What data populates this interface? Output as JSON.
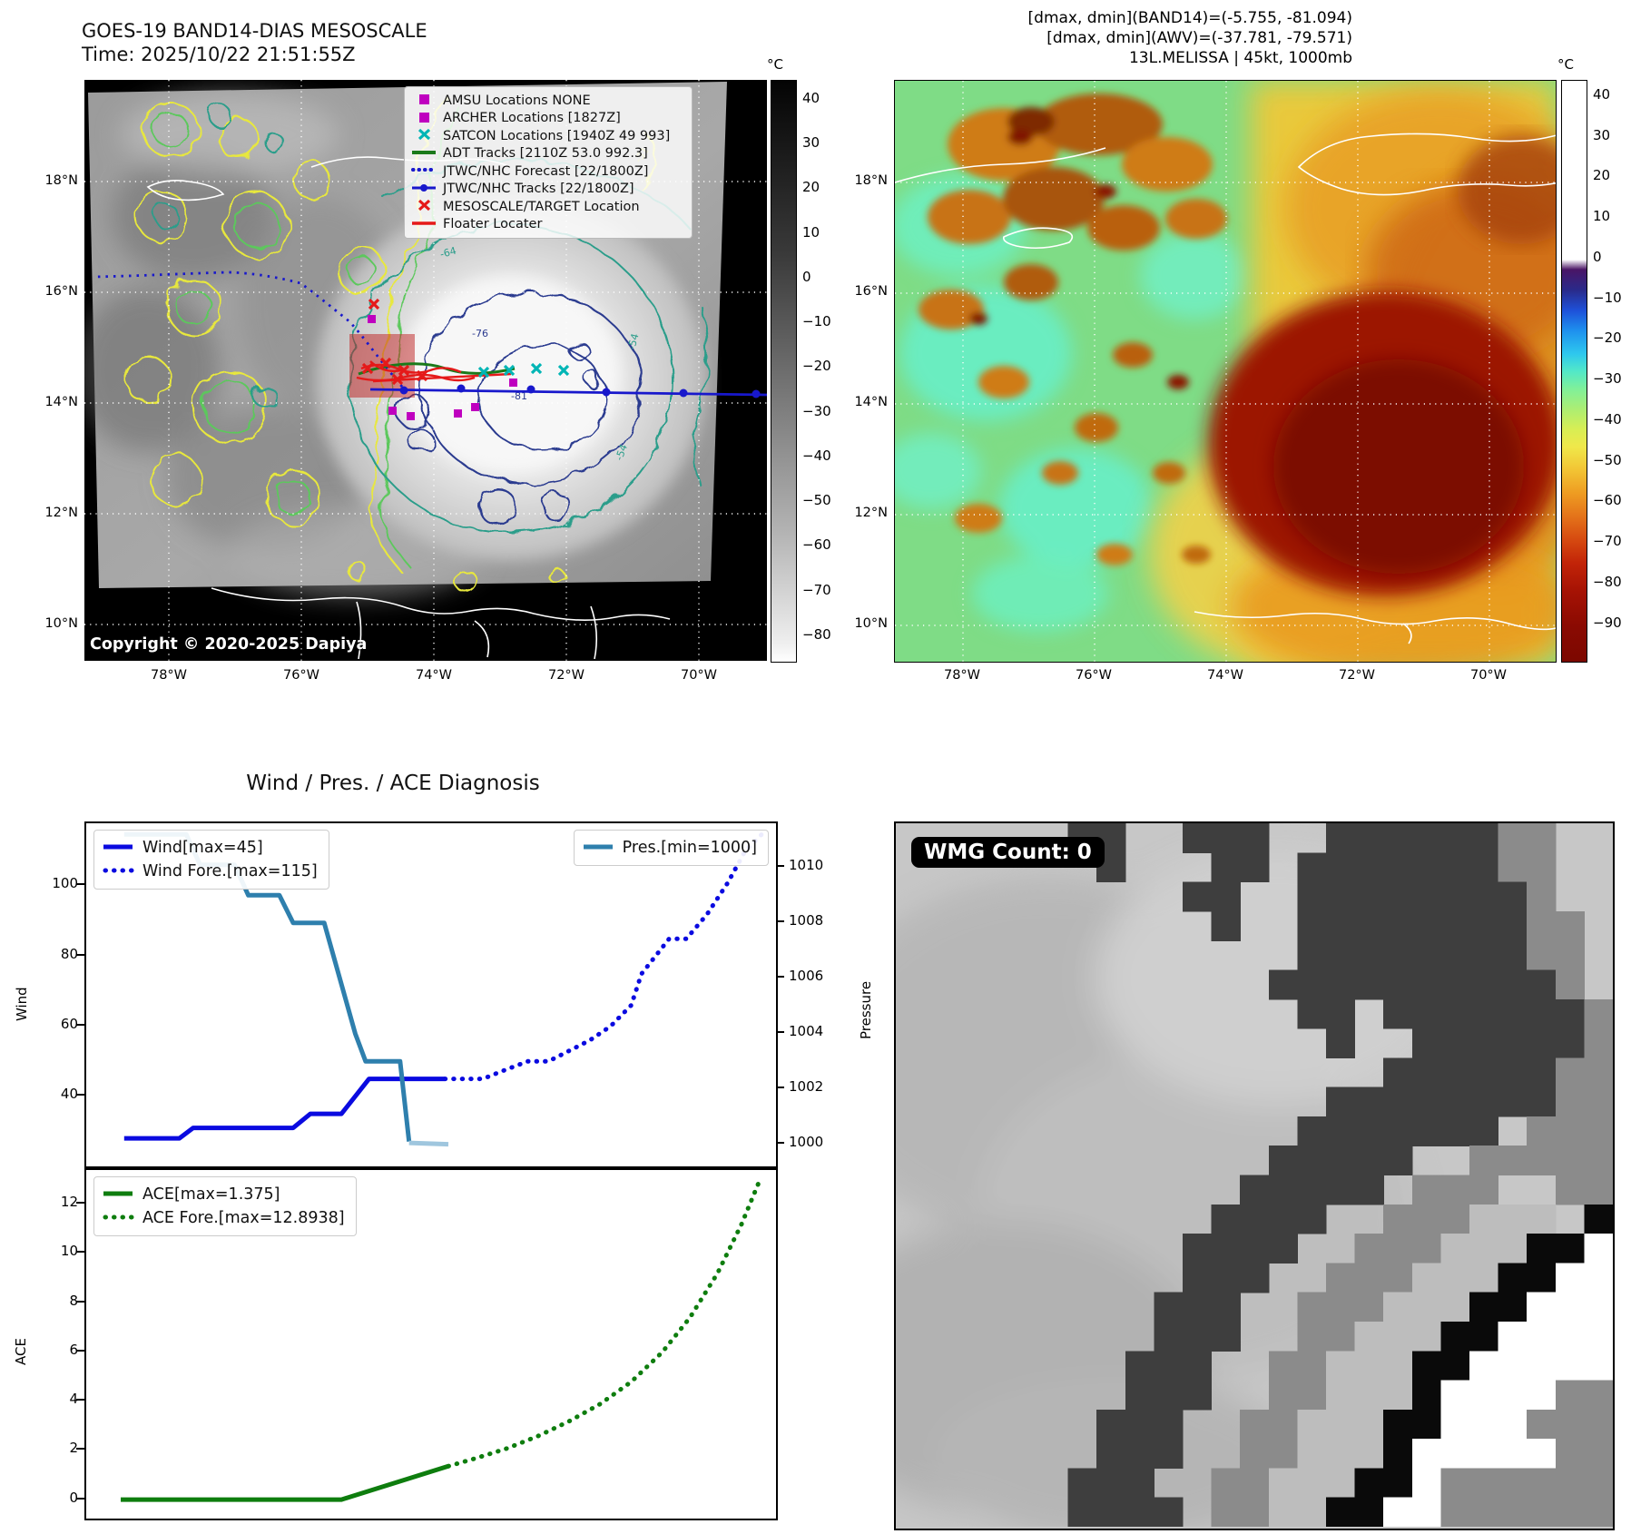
{
  "top_left": {
    "title_line1": "GOES-19 BAND14-DIAS MESOSCALE",
    "title_line2": "Time: 2025/10/22 21:51:55Z",
    "copyright": "Copyright © 2020-2025 Dapiya",
    "legend_items": [
      {
        "label": "AMSU Locations NONE",
        "marker": "magenta-square"
      },
      {
        "label": "ARCHER Locations [1827Z]",
        "marker": "magenta-square"
      },
      {
        "label": "SATCON Locations [1940Z 49 993]",
        "marker": "cyan-x"
      },
      {
        "label": "ADT Tracks [2110Z 53.0 992.3]",
        "marker": "green-line"
      },
      {
        "label": "JTWC/NHC Forecast [22/1800Z]",
        "marker": "blue-dotted-line"
      },
      {
        "label": "JTWC/NHC Tracks [22/1800Z]",
        "marker": "blue-line-dot"
      },
      {
        "label": "MESOSCALE/TARGET Location",
        "marker": "red-x"
      },
      {
        "label": "Floater Locater",
        "marker": "red-line"
      }
    ],
    "contour_labels": [
      "-64",
      "-76",
      "-81",
      "-54",
      "-54",
      "-31"
    ],
    "colorbar": {
      "unit": "°C",
      "ticks": [
        "40",
        "30",
        "20",
        "10",
        "0",
        "−10",
        "−20",
        "−30",
        "−40",
        "−50",
        "−60",
        "−70",
        "−80"
      ]
    }
  },
  "top_right": {
    "header_line1": "[dmax, dmin](BAND14)=(-5.755, -81.094)",
    "header_line2": "[dmax, dmin](AWV)=(-37.781, -79.571)",
    "header_line3": "13L.MELISSA | 45kt, 1000mb",
    "colorbar": {
      "unit": "°C",
      "ticks": [
        "40",
        "30",
        "20",
        "10",
        "0",
        "−10",
        "−20",
        "−30",
        "−40",
        "−50",
        "−60",
        "−70",
        "−80",
        "−90"
      ]
    }
  },
  "geo": {
    "lat_ticks": [
      "18°N",
      "16°N",
      "14°N",
      "12°N",
      "10°N"
    ],
    "lon_ticks": [
      "78°W",
      "76°W",
      "74°W",
      "72°W",
      "70°W"
    ]
  },
  "bottom_left": {
    "title": "Wind / Pres. / ACE Diagnosis",
    "wind_ylabel": "Wind",
    "pressure_ylabel": "Pressure",
    "ace_ylabel": "ACE",
    "wind_yticks": [
      "100",
      "80",
      "60",
      "40"
    ],
    "pressure_yticks": [
      "1010",
      "1008",
      "1006",
      "1004",
      "1002",
      "1000"
    ],
    "ace_yticks": [
      "12",
      "10",
      "8",
      "6",
      "4",
      "2",
      "0"
    ],
    "legend_wind": "Wind[max=45]",
    "legend_wind_fore": "Wind Fore.[max=115]",
    "legend_pres": "Pres.[min=1000]",
    "legend_ace": "ACE[max=1.375]",
    "legend_ace_fore": "ACE Fore.[max=12.8938]"
  },
  "bottom_right": {
    "badge": "WMG Count: 0"
  },
  "colors": {
    "wind_line": "#0a0ae0",
    "pressure_line": "#2e7fad",
    "pressure_faded": "#9fc6de",
    "ace_line": "#0e7d0e",
    "amsu_marker": "#bf00bf",
    "satcon_marker": "#00b5b5",
    "target_marker": "#e51919",
    "adt_track": "#1a7a1a",
    "jtwc_track": "#1818cc"
  },
  "chart_data": [
    {
      "type": "line",
      "title": "Wind / Pres. / ACE Diagnosis — Wind & Pressure panel",
      "xlabel": "",
      "ylabel": "Wind",
      "y2label": "Pressure",
      "ylim": [
        20,
        118
      ],
      "y2lim": [
        999.2,
        1011.6
      ],
      "yticks": [
        100,
        80,
        60,
        40
      ],
      "y2ticks": [
        1010,
        1008,
        1006,
        1004,
        1002,
        1000
      ],
      "grid": false,
      "x_axis": "normalized time 0-1 (analysis then forecast)",
      "series": [
        {
          "name": "Wind[max=45]",
          "axis": "left",
          "style": "solid",
          "color": "#0a0ae0",
          "width": 5,
          "x": [
            0.055,
            0.135,
            0.155,
            0.3,
            0.325,
            0.37,
            0.41,
            0.52
          ],
          "values": [
            28,
            28,
            31,
            31,
            35,
            35,
            45,
            45
          ]
        },
        {
          "name": "Wind Fore.[max=115]",
          "axis": "left",
          "style": "dotted",
          "color": "#0a0ae0",
          "width": 5,
          "x": [
            0.52,
            0.575,
            0.6,
            0.64,
            0.67,
            0.7,
            0.73,
            0.76,
            0.79,
            0.805,
            0.845,
            0.87,
            0.9,
            0.93,
            0.955,
            0.98
          ],
          "values": [
            45,
            45,
            47,
            50,
            50,
            53,
            56,
            60,
            66,
            75,
            85,
            85,
            92,
            101,
            110,
            115
          ]
        },
        {
          "name": "Pres.[min=1000]",
          "axis": "right",
          "style": "solid",
          "color": "#2e7fad",
          "width": 5,
          "x": [
            0.055,
            0.145,
            0.165,
            0.215,
            0.235,
            0.28,
            0.3,
            0.345,
            0.39,
            0.405,
            0.455,
            0.468
          ],
          "values": [
            1011.2,
            1011.2,
            1010.1,
            1010.1,
            1009.0,
            1009.0,
            1008.0,
            1008.0,
            1004.0,
            1003.0,
            1003.0,
            1000.1
          ]
        },
        {
          "name": "Pres. end (faded)",
          "axis": "right",
          "style": "solid",
          "color": "#9fc6de",
          "width": 5,
          "x": [
            0.468,
            0.525
          ],
          "values": [
            1000.05,
            1000.0
          ]
        }
      ]
    },
    {
      "type": "line",
      "title": "Wind / Pres. / ACE Diagnosis — ACE panel",
      "xlabel": "",
      "ylabel": "ACE",
      "ylim": [
        -0.75,
        13.4
      ],
      "yticks": [
        12,
        10,
        8,
        6,
        4,
        2,
        0
      ],
      "grid": false,
      "x_axis": "normalized time 0-1 (analysis then forecast)",
      "series": [
        {
          "name": "ACE[max=1.375]",
          "axis": "left",
          "style": "solid",
          "color": "#0e7d0e",
          "width": 5,
          "x": [
            0.05,
            0.37,
            0.525
          ],
          "values": [
            0.02,
            0.02,
            1.375
          ]
        },
        {
          "name": "ACE Fore.[max=12.8938]",
          "axis": "left",
          "style": "dotted",
          "color": "#0e7d0e",
          "width": 5,
          "x": [
            0.525,
            0.565,
            0.61,
            0.655,
            0.7,
            0.745,
            0.79,
            0.835,
            0.875,
            0.915,
            0.95,
            0.975
          ],
          "values": [
            1.375,
            1.7,
            2.1,
            2.6,
            3.2,
            3.9,
            4.8,
            6.0,
            7.4,
            9.2,
            11.2,
            12.89
          ]
        }
      ]
    }
  ]
}
